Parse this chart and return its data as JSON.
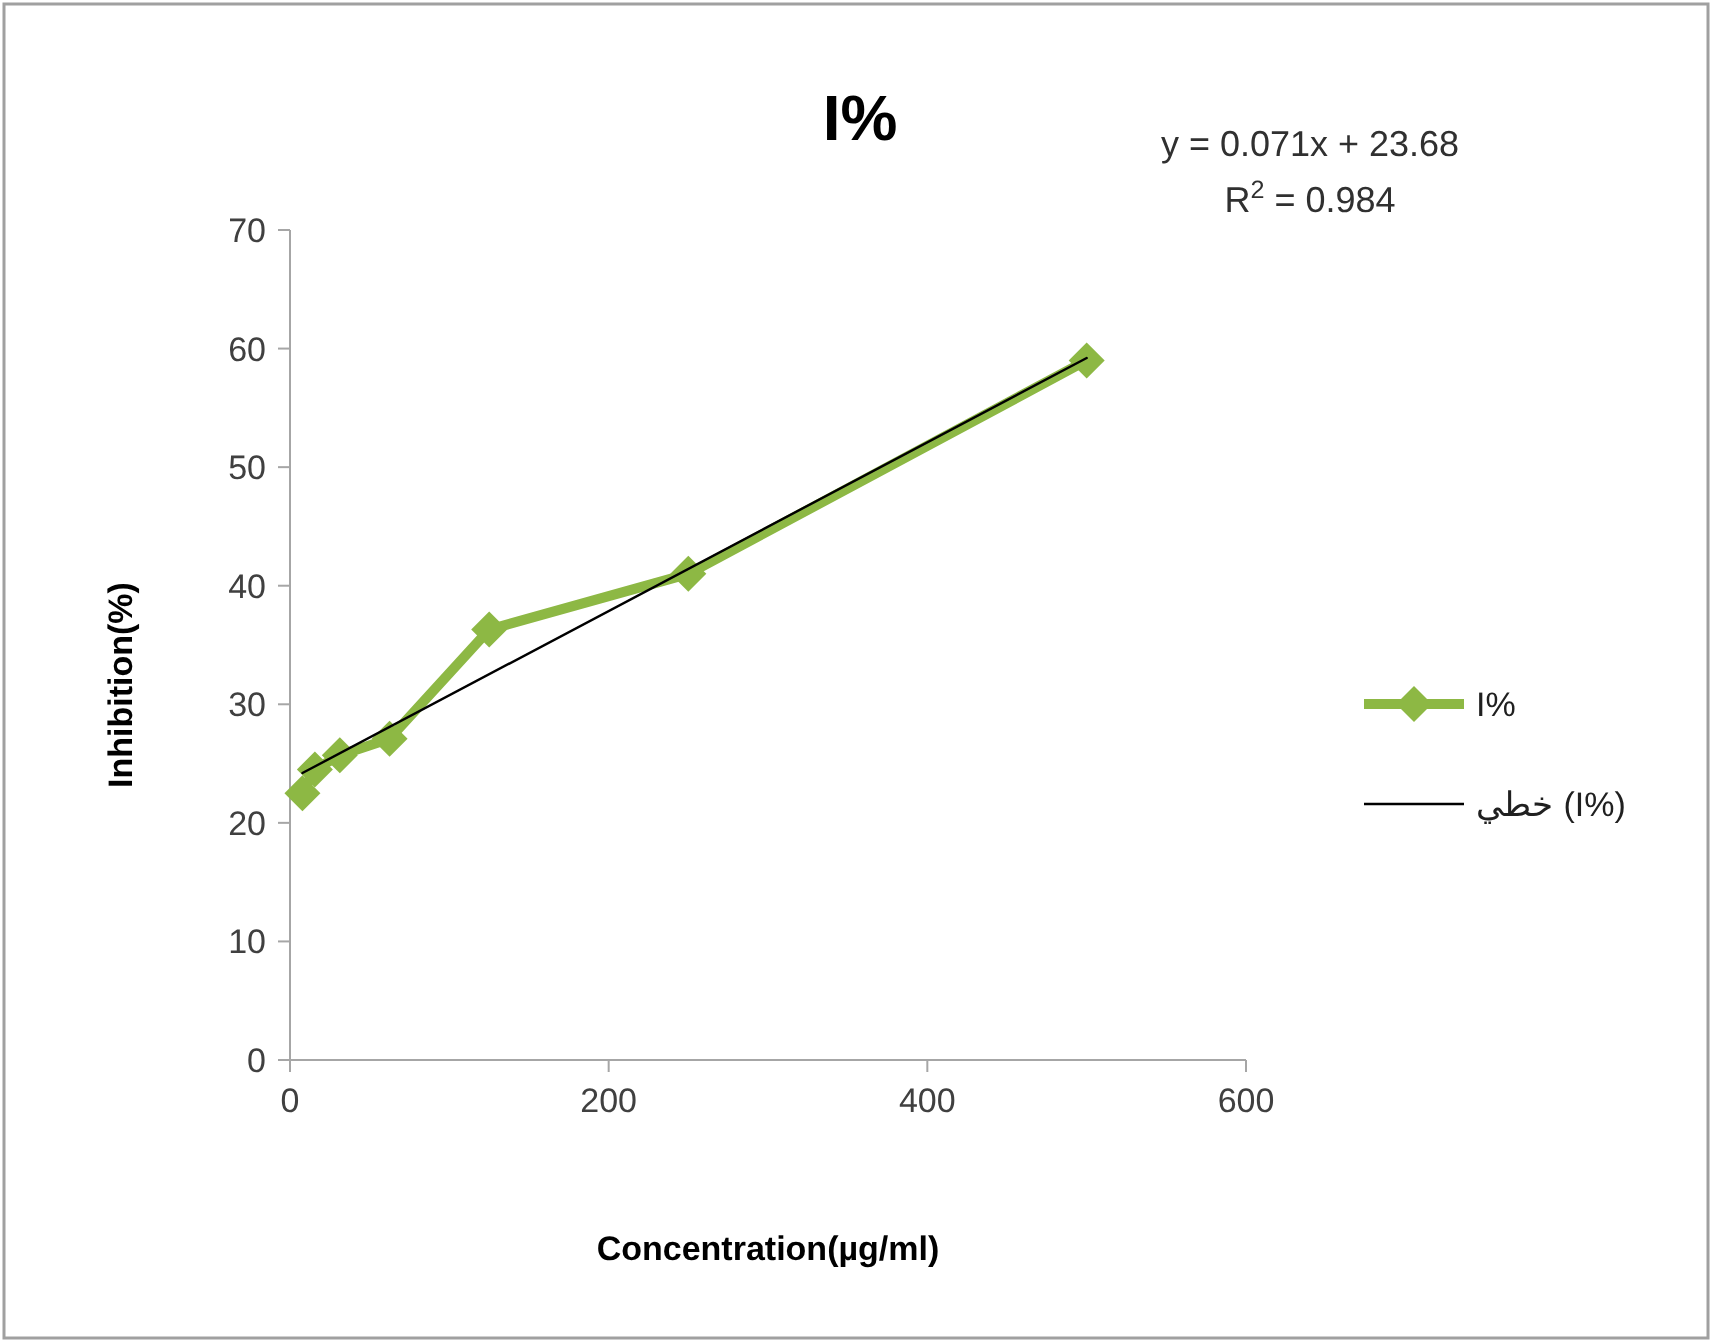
{
  "chart_data": {
    "type": "line",
    "title": "I%",
    "xlabel": "Concentration(µg/ml)",
    "ylabel": "Inhibition(%)",
    "annotations": [
      "y = 0.071x + 23.68",
      "R$^{2}$ = 0.984"
    ],
    "series": [
      {
        "name": "I%",
        "color": "#8db844",
        "marker": "diamond",
        "x": [
          7.8,
          15.6,
          31.25,
          62.5,
          125,
          250,
          500
        ],
        "values": [
          22.5,
          24.5,
          25.7,
          27.1,
          36.3,
          41.0,
          59.0
        ]
      },
      {
        "name": "خطي (I%)",
        "color": "#000000",
        "marker": "none",
        "x": [
          7.8,
          500
        ],
        "values": [
          24.2,
          59.2
        ]
      }
    ],
    "xlim": [
      0,
      600
    ],
    "xticks": [
      0,
      200,
      400,
      600
    ],
    "ylim": [
      0,
      70
    ],
    "yticks": [
      0,
      10,
      20,
      30,
      40,
      50,
      60,
      70
    ],
    "grid": false,
    "legend": "right",
    "line_style": "solid"
  }
}
